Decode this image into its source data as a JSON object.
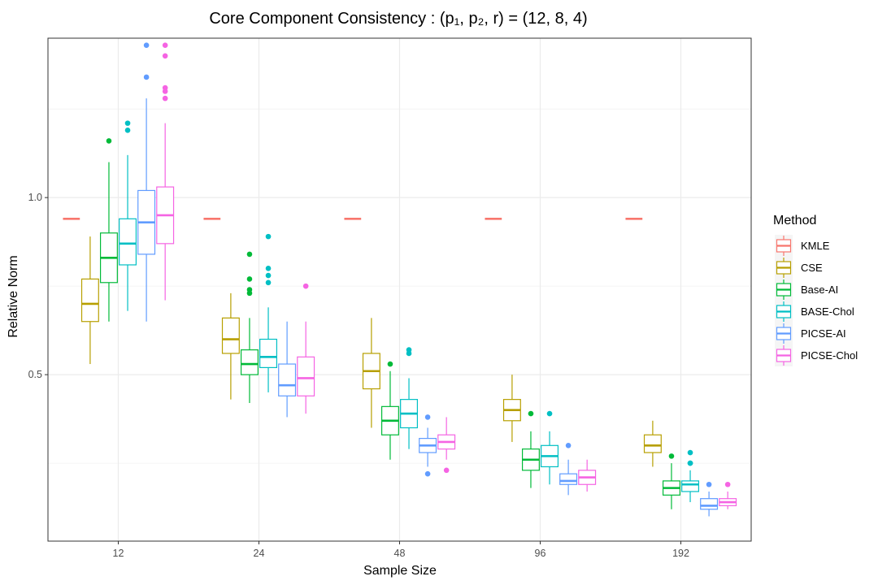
{
  "chart_data": {
    "type": "boxplot",
    "title": "Core Component Consistency : (p₁, p₂, r) = (12, 8, 4)",
    "xlabel": "Sample Size",
    "ylabel": "Relative Norm",
    "categories": [
      "12",
      "24",
      "48",
      "96",
      "192"
    ],
    "yticks": [
      0.5,
      1.0
    ],
    "ytick_labels": [
      "0.5",
      "1.0"
    ],
    "ylim": [
      0.03,
      1.45
    ],
    "grid": true,
    "legend": {
      "title": "Method",
      "placement": "right"
    },
    "series": [
      {
        "name": "KMLE",
        "color": "#F8766D",
        "boxes": [
          {
            "whisker_low": 0.94,
            "q1": 0.94,
            "median": 0.94,
            "q3": 0.94,
            "whisker_high": 0.94,
            "outliers": []
          },
          {
            "whisker_low": 0.94,
            "q1": 0.94,
            "median": 0.94,
            "q3": 0.94,
            "whisker_high": 0.94,
            "outliers": []
          },
          {
            "whisker_low": 0.94,
            "q1": 0.94,
            "median": 0.94,
            "q3": 0.94,
            "whisker_high": 0.94,
            "outliers": []
          },
          {
            "whisker_low": 0.94,
            "q1": 0.94,
            "median": 0.94,
            "q3": 0.94,
            "whisker_high": 0.94,
            "outliers": []
          },
          {
            "whisker_low": 0.94,
            "q1": 0.94,
            "median": 0.94,
            "q3": 0.94,
            "whisker_high": 0.94,
            "outliers": []
          }
        ]
      },
      {
        "name": "CSE",
        "color": "#B79F00",
        "boxes": [
          {
            "whisker_low": 0.53,
            "q1": 0.65,
            "median": 0.7,
            "q3": 0.77,
            "whisker_high": 0.89,
            "outliers": []
          },
          {
            "whisker_low": 0.43,
            "q1": 0.56,
            "median": 0.6,
            "q3": 0.66,
            "whisker_high": 0.73,
            "outliers": []
          },
          {
            "whisker_low": 0.35,
            "q1": 0.46,
            "median": 0.51,
            "q3": 0.56,
            "whisker_high": 0.66,
            "outliers": []
          },
          {
            "whisker_low": 0.31,
            "q1": 0.37,
            "median": 0.4,
            "q3": 0.43,
            "whisker_high": 0.5,
            "outliers": []
          },
          {
            "whisker_low": 0.24,
            "q1": 0.28,
            "median": 0.3,
            "q3": 0.33,
            "whisker_high": 0.37,
            "outliers": []
          }
        ]
      },
      {
        "name": "Base-AI",
        "color": "#00BA38",
        "boxes": [
          {
            "whisker_low": 0.65,
            "q1": 0.76,
            "median": 0.83,
            "q3": 0.9,
            "whisker_high": 1.1,
            "outliers": [
              1.16
            ]
          },
          {
            "whisker_low": 0.42,
            "q1": 0.5,
            "median": 0.53,
            "q3": 0.57,
            "whisker_high": 0.66,
            "outliers": [
              0.73,
              0.74,
              0.77,
              0.84
            ]
          },
          {
            "whisker_low": 0.26,
            "q1": 0.33,
            "median": 0.37,
            "q3": 0.41,
            "whisker_high": 0.51,
            "outliers": [
              0.53
            ]
          },
          {
            "whisker_low": 0.18,
            "q1": 0.23,
            "median": 0.26,
            "q3": 0.29,
            "whisker_high": 0.34,
            "outliers": [
              0.39
            ]
          },
          {
            "whisker_low": 0.12,
            "q1": 0.16,
            "median": 0.18,
            "q3": 0.2,
            "whisker_high": 0.25,
            "outliers": [
              0.27
            ]
          }
        ]
      },
      {
        "name": "BASE-Chol",
        "color": "#00BFC4",
        "boxes": [
          {
            "whisker_low": 0.68,
            "q1": 0.81,
            "median": 0.87,
            "q3": 0.94,
            "whisker_high": 1.12,
            "outliers": [
              1.19,
              1.21
            ]
          },
          {
            "whisker_low": 0.45,
            "q1": 0.52,
            "median": 0.55,
            "q3": 0.6,
            "whisker_high": 0.69,
            "outliers": [
              0.76,
              0.78,
              0.8,
              0.89
            ]
          },
          {
            "whisker_low": 0.29,
            "q1": 0.35,
            "median": 0.39,
            "q3": 0.43,
            "whisker_high": 0.49,
            "outliers": [
              0.56,
              0.57
            ]
          },
          {
            "whisker_low": 0.19,
            "q1": 0.24,
            "median": 0.27,
            "q3": 0.3,
            "whisker_high": 0.34,
            "outliers": [
              0.39
            ]
          },
          {
            "whisker_low": 0.14,
            "q1": 0.17,
            "median": 0.19,
            "q3": 0.2,
            "whisker_high": 0.23,
            "outliers": [
              0.25,
              0.25,
              0.28
            ]
          }
        ]
      },
      {
        "name": "PICSE-AI",
        "color": "#619CFF",
        "boxes": [
          {
            "whisker_low": 0.65,
            "q1": 0.84,
            "median": 0.93,
            "q3": 1.02,
            "whisker_high": 1.28,
            "outliers": [
              1.34,
              1.43
            ]
          },
          {
            "whisker_low": 0.38,
            "q1": 0.44,
            "median": 0.47,
            "q3": 0.53,
            "whisker_high": 0.65,
            "outliers": []
          },
          {
            "whisker_low": 0.24,
            "q1": 0.28,
            "median": 0.3,
            "q3": 0.32,
            "whisker_high": 0.35,
            "outliers": [
              0.22,
              0.38
            ]
          },
          {
            "whisker_low": 0.16,
            "q1": 0.19,
            "median": 0.2,
            "q3": 0.22,
            "whisker_high": 0.26,
            "outliers": [
              0.3
            ]
          },
          {
            "whisker_low": 0.1,
            "q1": 0.12,
            "median": 0.13,
            "q3": 0.15,
            "whisker_high": 0.17,
            "outliers": [
              0.19
            ]
          }
        ]
      },
      {
        "name": "PICSE-Chol",
        "color": "#F564E3",
        "boxes": [
          {
            "whisker_low": 0.71,
            "q1": 0.87,
            "median": 0.95,
            "q3": 1.03,
            "whisker_high": 1.21,
            "outliers": [
              1.28,
              1.3,
              1.31,
              1.4,
              1.43
            ]
          },
          {
            "whisker_low": 0.39,
            "q1": 0.44,
            "median": 0.49,
            "q3": 0.55,
            "whisker_high": 0.65,
            "outliers": [
              0.75
            ]
          },
          {
            "whisker_low": 0.26,
            "q1": 0.29,
            "median": 0.31,
            "q3": 0.33,
            "whisker_high": 0.38,
            "outliers": [
              0.23
            ]
          },
          {
            "whisker_low": 0.17,
            "q1": 0.19,
            "median": 0.21,
            "q3": 0.23,
            "whisker_high": 0.26,
            "outliers": []
          },
          {
            "whisker_low": 0.12,
            "q1": 0.13,
            "median": 0.14,
            "q3": 0.15,
            "whisker_high": 0.17,
            "outliers": [
              0.19
            ]
          }
        ]
      }
    ]
  }
}
